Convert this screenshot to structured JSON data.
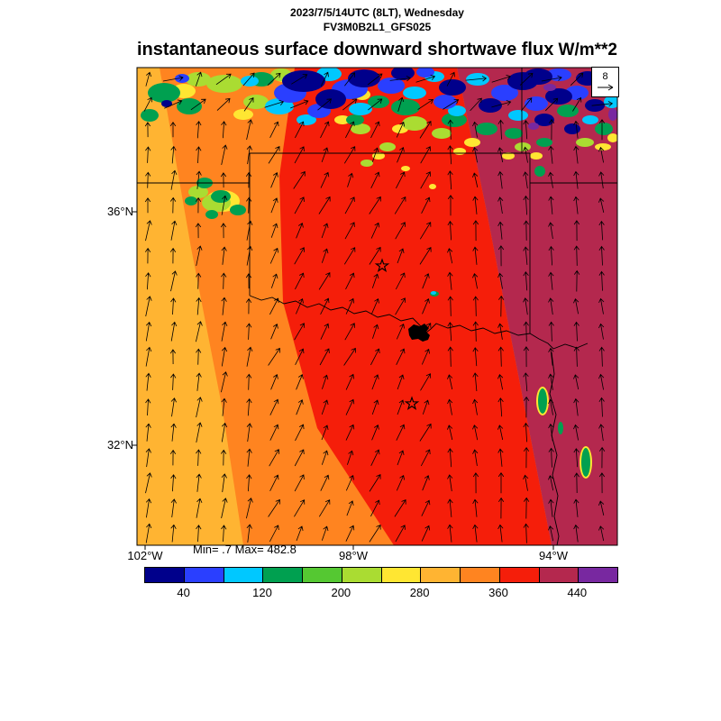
{
  "header": {
    "datetime": "2023/7/5/14UTC (8LT), Wednesday",
    "model": "FV3M0B2L1_GFS025"
  },
  "title": {
    "main": "instantaneous surface downward shortwave flux",
    "units": "W/m**2"
  },
  "axes": {
    "lat_labels": [
      "36°N",
      "32°N"
    ],
    "lon_labels": [
      "102°W",
      "98°W",
      "94°W"
    ]
  },
  "stats": {
    "text": "Min= .7 Max= 482.8"
  },
  "ref_vector": {
    "value": "8"
  },
  "colorbar": {
    "ticks": [
      "40",
      "120",
      "200",
      "280",
      "360",
      "440"
    ],
    "colors": [
      "#00008b",
      "#2a3fff",
      "#00c8ff",
      "#00a050",
      "#55c832",
      "#aadc32",
      "#ffe632",
      "#ffb432",
      "#ff8420",
      "#f51e0a",
      "#b4284e",
      "#7828a0"
    ]
  },
  "chart_data": {
    "type": "heatmap",
    "title": "instantaneous surface downward shortwave flux",
    "units": "W/m**2",
    "valid_time": "2023/7/5/14UTC (8LT), Wednesday",
    "model_run": "FV3M0B2L1_GFS025",
    "min": 0.7,
    "max": 482.8,
    "lat_ticks": [
      "36°N",
      "32°N"
    ],
    "lon_ticks": [
      "102°W",
      "98°W",
      "94°W"
    ],
    "colorbar_labeled_values": [
      40,
      120,
      200,
      280,
      360,
      440
    ],
    "colorbar_interval": 40,
    "colorbar_colors": [
      "#00008b",
      "#2a3fff",
      "#00c8ff",
      "#00a050",
      "#55c832",
      "#aadc32",
      "#ffe632",
      "#ffb432",
      "#ff8420",
      "#f51e0a",
      "#b4284e",
      "#7828a0"
    ],
    "wind_reference_vector": 8,
    "overlays": [
      "wind vector arrows",
      "state borders (Texas / Oklahoma region)",
      "two star city markers",
      "black lake polygon on Red River"
    ],
    "field_regions": [
      {
        "area": "west",
        "approx_values": "280-360",
        "color": "orange"
      },
      {
        "area": "central",
        "approx_values": "360-400",
        "color": "bright red"
      },
      {
        "area": "east",
        "approx_values": "400-440",
        "color": "dark red"
      },
      {
        "area": "northern edge cloud field",
        "approx_values": "0-280",
        "color": "blue, cyan, green and yellow patches"
      }
    ]
  }
}
